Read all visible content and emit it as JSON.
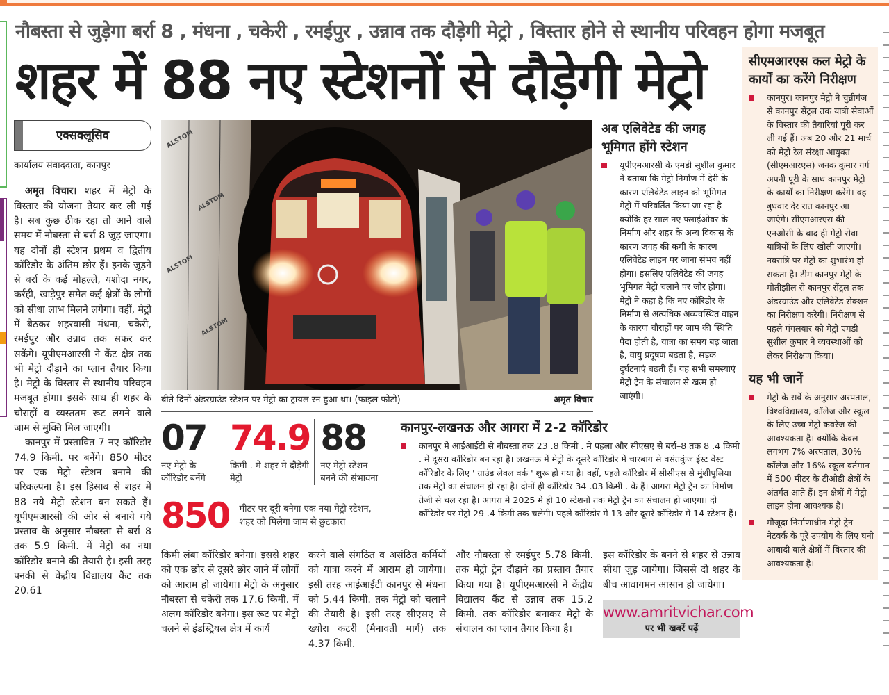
{
  "newspaper": {
    "brand": "अमृत विचार",
    "accent_color": "#ef7a3c",
    "highlight_color": "#e3192e"
  },
  "article": {
    "subheadline": "नौबस्ता से जुड़ेगा बर्रा 8 , मंधना , चकेरी , रमईपुर , उन्नाव तक दौड़ेगी मेट्रो , विस्तार होने से स्थानीय परिवहन होगा मजबूत",
    "headline": "शहर में 88 नए स्टेशनों से दौड़ेगी मेट्रो",
    "exclusive_tag": "एक्सक्लूसिव",
    "byline": "कार्यालय संवाददाता, कानपुर",
    "lead_dateline": "अमृत विचार।",
    "body_left": [
      "शहर में मेट्रो के विस्तार की योजना तैयार कर ली गई है। सब कुछ ठीक रहा तो आने वाले समय में नौबस्ता से बर्रा 8 जुड़ जाएगा। यह दोनों ही स्टेशन प्रथम व द्वितीय कॉरिडोर के अंतिम छोर हैं। इनके जुड़ने से बर्रा के कई मोहल्ले, यशोदा नगर, कर्रही, खाड़ेपुर समेत कई क्षेत्रों के लोगों को सीधा लाभ मिलने लगेगा। वहीं, मेट्रो में बैठकर शहरवासी मंधना, चकेरी, रमईपुर और उन्नाव तक सफर कर सकेंगे। यूपीएमआरसी ने कैंट क्षेत्र तक भी मेट्रो दौड़ाने का प्लान तैयार किया है। मेट्रो के विस्तार से स्थानीय परिवहन मजबूत होगा। इसके साथ ही शहर के चौराहों व व्यस्ततम रूट लगने वाले जाम से मुक्ति मिल जाएगी।",
      "कानपुर में प्रस्तावित 7 नए कॉरिडोर 74.9 किमी. पर बनेंगे। 850 मीटर पर एक मेट्रो स्टेशन बनाने की परिकल्पना है। इस हिसाब से शहर में 88 नये मेट्रो स्टेशन बन सकते हैं। यूपीएमआरसी की ओर से बनाये गये प्रस्ताव के अनुसार नौबस्ता से बर्रा 8 तक 5.9 किमी. में मेट्रो का नया कॉरिडोर बनाने की तैयारी है। इसी तरह पनकी से केंद्रीय विद्यालय कैंट तक 20.61"
    ],
    "body_bottom": [
      "किमी लंबा कॉरिडोर बनेगा। इससे शहर को एक छोर से दूसरे छोर जाने में लोगों को आराम हो जायेगा। मेट्रो के अनुसार नौबस्ता से चकेरी तक 17.6 किमी. में अलग कॉरिडोर बनेगा। इस रूट पर मेट्रो चलने से इंडस्ट्रियल क्षेत्र में कार्य",
      "करने वाले संगठित व असंठित कर्मियों को यात्रा करने में आराम हो जायेगा। इसी तरह आईआईटी कानपुर से मंधना को 5.44 किमी. तक मेट्रो को चलाने की तैयारी है। इसी तरह सीएसए से ख्योरा कटरी (मैनावती मार्ग) तक 4.37 किमी.",
      "और नौबस्ता से रमईपुर 5.78 किमी. तक मेट्रो ट्रेन दौड़ाने का प्रस्ताव तैयार किया गया है। यूपीएमआरसी ने केंद्रीय विद्यालय कैंट से उन्नाव तक 15.2 किमी. तक कॉरिडोर बनाकर मेट्रो के संचालन का प्लान तैयार किया है।",
      "इस कॉरिडोर के बनने से शहर से उन्नाव सीधा जुड़ जायेगा। जिससे दो शहर के बीच आवागमन आसान हो जायेगा।"
    ]
  },
  "photo": {
    "caption": "बीते दिनों अंडरग्राउंड स्टेशन पर मेट्रो का ट्रायल रन हुआ था। (फाइल फोटो)",
    "credit": "अमृत विचार",
    "wall_text": "ALSTOM"
  },
  "stats": [
    {
      "value": "07",
      "label": "नए मेट्रो के कॉरिडोर बनेंगे",
      "highlight": false
    },
    {
      "value": "74.9",
      "label": "किमी . मे शहर मे दौड़ेगी मेट्रो",
      "highlight": true
    },
    {
      "value": "88",
      "label": "नए मेट्रो स्टेशन बनने की संभावना",
      "highlight": false
    },
    {
      "value": "850",
      "label": "मीटर पर दूरी बनेगा एक नया मेट्रो स्टेशन, शहर को मिलेगा जाम से छुटकारा",
      "highlight": true
    }
  ],
  "corridors_box": {
    "title": "कानपुर-लखनऊ और आगरा में 2-2 कॉरिडोर",
    "body": "कानपुर मे आईआईटी से नौबस्ता तक 23 .8 किमी . मे पहला और सीएसए से बर्रा–8 तक 8 .4 किमी . मे दूसरा कॉरिडोर बन रहा है। लखनऊ में मेट्रो के दूसरे कॉरिडोर में चारबाग से वसंतकुंज ईस्ट वेस्ट कॉरिडोर के लिए ' ग्राउंड लेवल वर्क ' शुरू हो गया है। वहीं, पहले कॉरिडोर में सीसीएस से मुंशीपुलिया तक मेट्रो का संचालन हो रहा है। दोनों ही कॉरिडोर 34 .03 किमी . के हैं। आगरा मेट्रो ट्रेन का निर्माण तेजी से चल रहा है। आगरा मे 2025 मे ही 10 स्टेशनो तक मेट्रो ट्रेन का संचालन हो जाएगा। दो कॉरिडोर पर मेट्रो 29 .4 किमी तक चलेगी। पहले कॉरिडोर मे 13 और दूसरे कॉरिडोर मे 14 स्टेशन हैं।"
  },
  "elevated_box": {
    "title": "अब एलिवेटेड की जगह भूमिगत होंगे स्टेशन",
    "body": "यूपीएमआरसी के एमडी सुशील कुमार ने बताया कि मेट्रो निर्माण में देरी के कारण एलिवेटेड लाइन को भूमिगत मेट्रो में परिवर्तित किया जा रहा है क्योंकि हर साल नए फ्लाईओवर के निर्माण और शहर के अन्य विकास के कारण जगह की कमी के कारण एलिवेटेड लाइन पर जाना संभव नहीं होगा। इसलिए एलिवेटेड की जगह भूमिगत मेट्रो चलाने पर जोर होगा। मेट्रो ने कहा है कि नए कॉरिडोर के निर्माण से अत्यधिक अव्यवस्थित वाहन के कारण चौराहों पर जाम की स्थिति पैदा होती है, यात्रा का समय बढ़ जाता है, वायु प्रदूषण बढ़ता है, सड़क दुर्घटनाएं बढ़ती हैं। यह सभी समस्याएं मेट्रो ट्रेन के संचालन से खत्म हो जाएंगी।"
  },
  "sidebar": {
    "cmrs_title": "सीएमआरएस कल मेट्रो के कार्यों का करेंगे निरीक्षण",
    "cmrs_body": "कानपुर। कानपुर मेट्रो ने चुन्नीगंज से कानपुर सेंट्रल तक यात्री सेवाओं के विस्तार की तैयारियां पूरी कर ली गई हैं। अब 20 और 21 मार्च को मेट्रो रेल संरक्षा आयुक्त (सीएमआरएस) जनक कुमार गर्ग अपनी पूरी के साथ कानपुर मेट्रो के कार्यों का निरीक्षण करेंगे। वह बुधवार देर रात कानपुर आ जाएंगे। सीएमआरएस की एनओसी के बाद ही मेट्रो सेवा यात्रियों के लिए खोली जाएगी। नवरात्रि पर मेट्रो का शुभारंभ हो सकता है। टीम कानपुर मेट्रो के मोतीझील से कानपुर सेंट्रल तक अंडरग्राउंड और एलिवेटेड सेक्शन का निरीक्षण करेगी। निरीक्षण से पहले मंगलवार को मेट्रो एमडी सुशील कुमार ने व्यवस्थाओं को लेकर निरीक्षण किया।",
    "box_color": "#fcf0e6",
    "know_title": "यह भी जानें",
    "know_items": [
      "मेट्रो के सर्वे के अनुसार अस्पताल, विश्वविद्यालय, कॉलेज और स्कूल के लिए उच्च मेट्रो कवरेज की आवश्यकता है। क्योंकि केवल लगभग 7% अस्पताल, 30% कॉलेज और 16% स्कूल वर्तमान में 500 मीटर के टीओडी क्षेत्रों के अंतर्गत आते हैं। इन क्षेत्रों में मेट्रो लाइन होना आवश्यक है।",
      "मौजूदा निर्माणाधीन मेट्रो ट्रेन नेटवर्क के पूरे उपयोग के लिए घनी आबादी वाले क्षेत्रों में विस्तार की आवश्यकता है।"
    ]
  },
  "web_promo": {
    "url": "www.amritvichar.com",
    "tagline": "पर भी खबरें पढ़ें"
  }
}
